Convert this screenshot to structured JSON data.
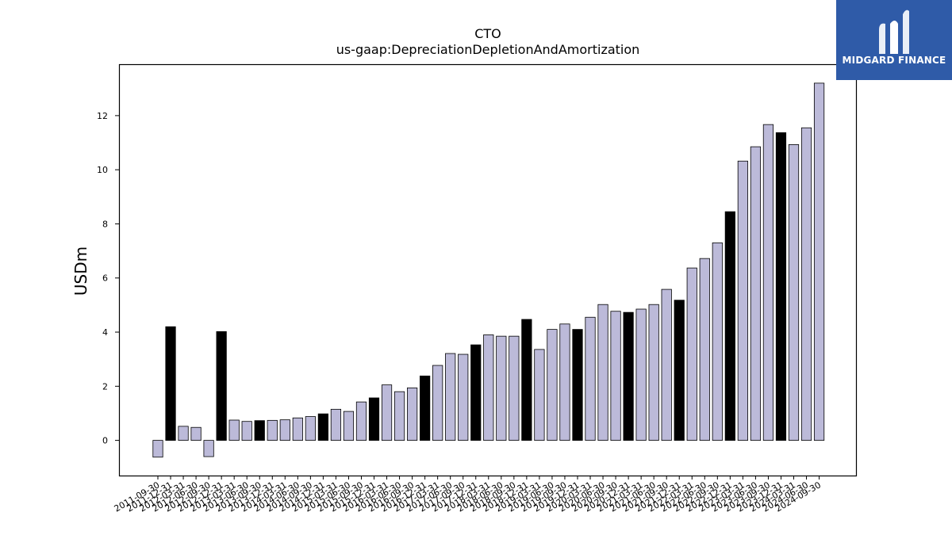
{
  "brand": {
    "name": "MIDGARD FINANCE",
    "color": "#2f5ba8"
  },
  "colors": {
    "bar": "#bcbad9",
    "highlight": "#000000",
    "edge": "#000000"
  },
  "chart_data": {
    "type": "bar",
    "title": "CTO",
    "subtitle": "us-gaap:DepreciationDepletionAndAmortization",
    "xlabel": "",
    "ylabel": "USDm",
    "ylim": [
      -1.3,
      13.9
    ],
    "yticks": [
      0,
      2,
      4,
      6,
      8,
      10,
      12
    ],
    "grid": false,
    "categories": [
      "2011-09-30",
      "2011-12-31",
      "2012-03-31",
      "2012-06-30",
      "2012-09-30",
      "2012-12-31",
      "2013-03-31",
      "2013-06-30",
      "2013-09-30",
      "2013-12-31",
      "2014-03-31",
      "2014-06-30",
      "2014-09-30",
      "2014-12-31",
      "2015-03-31",
      "2015-06-30",
      "2015-09-30",
      "2015-12-31",
      "2016-03-31",
      "2016-06-30",
      "2016-09-30",
      "2016-12-31",
      "2017-03-31",
      "2017-06-30",
      "2017-09-30",
      "2017-12-31",
      "2018-03-31",
      "2018-06-30",
      "2018-09-30",
      "2018-12-31",
      "2019-03-31",
      "2019-06-30",
      "2019-09-30",
      "2019-12-31",
      "2020-03-31",
      "2020-06-30",
      "2020-09-30",
      "2020-12-31",
      "2021-03-31",
      "2021-06-30",
      "2021-09-30",
      "2021-12-31",
      "2022-03-31",
      "2022-06-30",
      "2022-09-30",
      "2022-12-31",
      "2023-03-31",
      "2023-06-30",
      "2023-09-30",
      "2023-12-31",
      "2024-03-31",
      "2024-06-30",
      "2024-09-30"
    ],
    "values": [
      -0.62,
      4.2,
      0.52,
      0.48,
      -0.6,
      4.02,
      0.75,
      0.7,
      0.73,
      0.74,
      0.76,
      0.83,
      0.88,
      0.98,
      1.15,
      1.07,
      1.42,
      1.57,
      2.05,
      1.8,
      1.94,
      2.38,
      2.77,
      3.21,
      3.18,
      3.53,
      3.9,
      3.85,
      3.85,
      4.47,
      3.36,
      4.1,
      4.3,
      4.1,
      4.55,
      5.02,
      4.77,
      4.73,
      4.85,
      5.02,
      5.58,
      5.18,
      6.37,
      6.72,
      7.3,
      8.45,
      10.32,
      10.85,
      11.67,
      11.37,
      10.93,
      11.55,
      13.2
    ],
    "highlight_index": [
      1,
      5,
      8,
      13,
      17,
      21,
      25,
      29,
      33,
      37,
      41,
      45,
      49
    ]
  }
}
